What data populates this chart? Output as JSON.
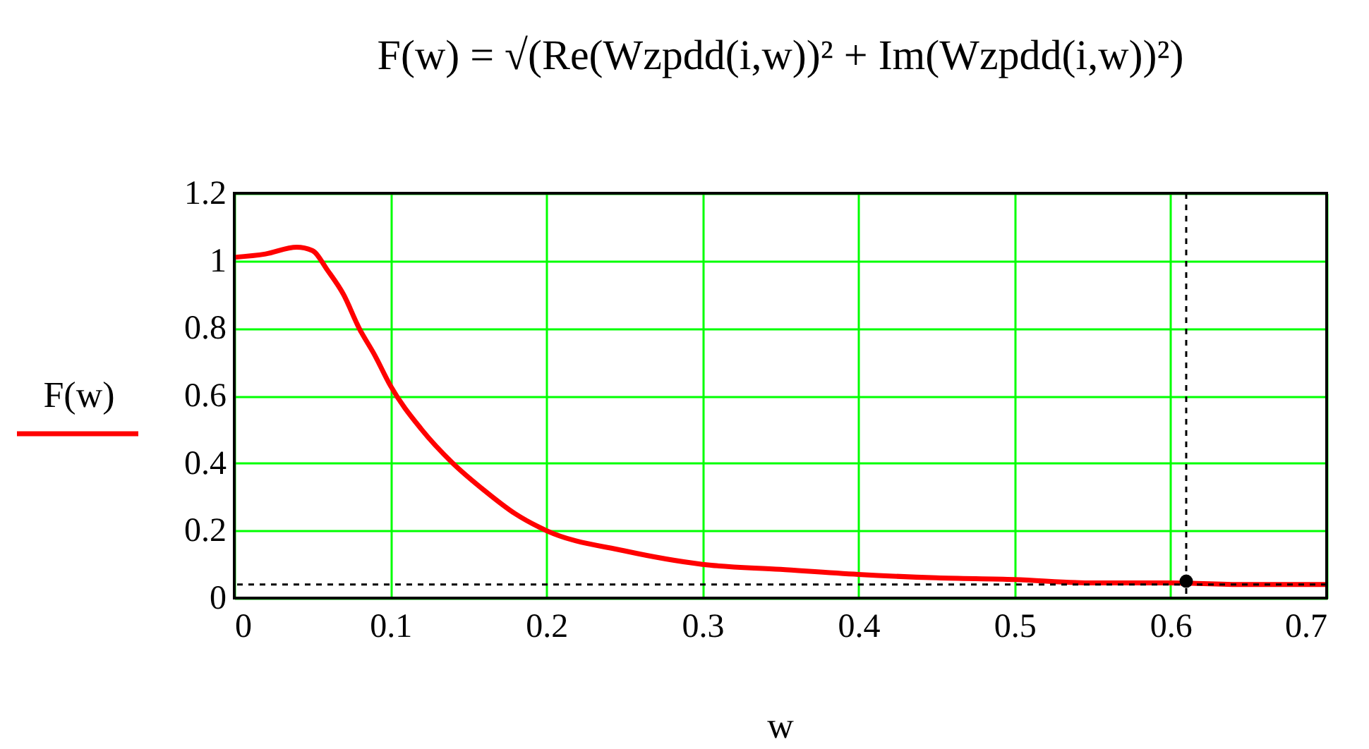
{
  "chart_data": {
    "type": "line",
    "title": "F(w) = √(Re(Wzpdd(i,w))² + Im(Wzpdd(i,w))²)",
    "xlabel": "w",
    "ylabel": "F(w)",
    "x": [
      0,
      0.02,
      0.04,
      0.05,
      0.06,
      0.07,
      0.08,
      0.09,
      0.1,
      0.12,
      0.14,
      0.16,
      0.18,
      0.2,
      0.25,
      0.3,
      0.35,
      0.4,
      0.45,
      0.5,
      0.55,
      0.6,
      0.65,
      0.7
    ],
    "series": [
      {
        "color": "#ff0000",
        "values": [
          1.01,
          1.02,
          1.04,
          1.03,
          0.97,
          0.9,
          0.8,
          0.72,
          0.63,
          0.5,
          0.4,
          0.32,
          0.25,
          0.2,
          0.14,
          0.1,
          0.085,
          0.07,
          0.06,
          0.055,
          0.045,
          0.045,
          0.04,
          0.04
        ]
      },
      {
        "type": "scatter",
        "marker": "circle",
        "color": "#000000",
        "x": [
          0.61
        ],
        "values": [
          0.05
        ]
      }
    ],
    "xlim": [
      0,
      0.7
    ],
    "ylim": [
      0,
      1.2
    ],
    "xticks": [
      0,
      0.1,
      0.2,
      0.3,
      0.4,
      0.5,
      0.6,
      0.7
    ],
    "yticks": [
      0,
      0.2,
      0.4,
      0.6,
      0.8,
      1,
      1.2
    ],
    "ref_lines": [
      {
        "axis": "x",
        "value": 0.61,
        "line_style": "dashed",
        "color": "#000000"
      },
      {
        "axis": "y",
        "value": 0.04,
        "line_style": "dashed",
        "color": "#000000"
      }
    ],
    "grid": true,
    "marker": "none",
    "line_style": "solid"
  }
}
